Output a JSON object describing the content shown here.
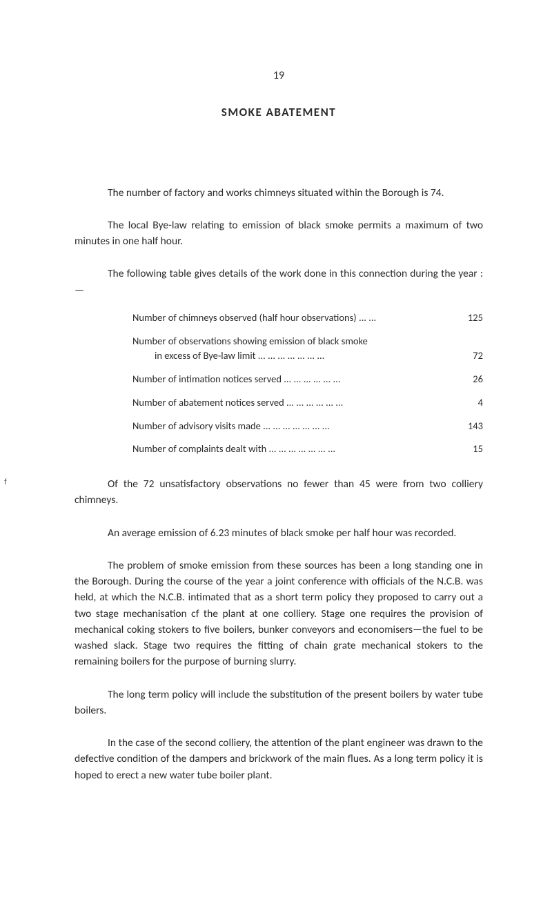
{
  "pageNumber": "19",
  "title": "SMOKE ABATEMENT",
  "para1": "The number of factory and works chimneys situated within the Borough is 74.",
  "para2": "The local Bye-law relating to emission of black smoke permits a maximum of two minutes in one half hour.",
  "para3": "The following table gives details of the work done in this connection during the year :—",
  "tableRows": [
    {
      "label": "Number of chimneys observed (half hour observations) ...  ...",
      "value": "125"
    },
    {
      "label": "Number of observations showing emission of black smoke",
      "sublabel": "in excess of Bye-law limit       ...  ...  ...  ...  ...  ...  ...",
      "value": "72"
    },
    {
      "label": "Number of intimation notices served ...  ...  ...  ...  ...  ...",
      "value": "26"
    },
    {
      "label": "Number of abatement notices served ...  ...  ...  ...  ...  ...",
      "value": "4"
    },
    {
      "label": "Number of advisory visits made   ...  ...  ...  ...  ...  ...  ...",
      "value": "143"
    },
    {
      "label": "Number of complaints dealt with ...  ...  ...  ...  ...  ...  ...",
      "value": "15"
    }
  ],
  "para4": "Of the 72 unsatisfactory observations no fewer than 45 were from two colliery chimneys.",
  "para5": "An average emission of 6.23 minutes of black smoke per half hour was recorded.",
  "para6": "The problem of smoke emission from these sources has been a long standing one in the Borough.  During the course of the year a joint conference with officials of the N.C.B. was held, at which the N.C.B. intimated that as a short term policy they proposed to carry out a two stage mechanisation cf the plant at one colliery.  Stage one requires the provision of mechanical coking stokers to five boilers, bunker conveyors and economisers—the fuel to be washed slack.  Stage two requires the fitting of chain grate mechanical stokers to the remaining boilers for the purpose of burning slurry.",
  "para7": "The long term policy will include the substitution of the present boilers by water tube boilers.",
  "para8": "In the case of the second colliery, the attention of the plant engineer was drawn to the defective condition of the dampers and brickwork of the main flues.  As a long term policy it is hoped to erect a new water tube boiler plant.",
  "tickMark": "f"
}
